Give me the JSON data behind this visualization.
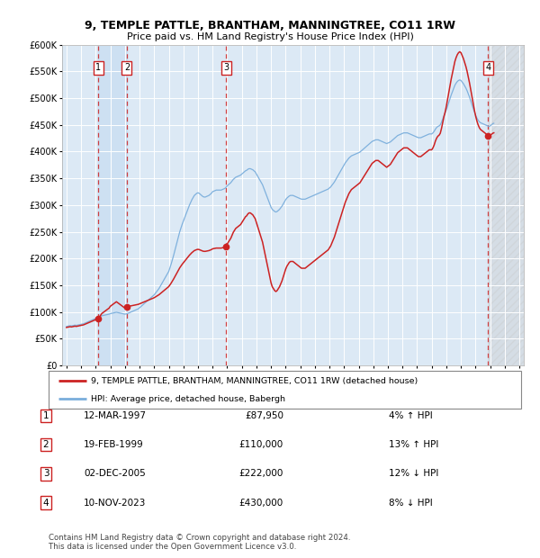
{
  "title": "9, TEMPLE PATTLE, BRANTHAM, MANNINGTREE, CO11 1RW",
  "subtitle": "Price paid vs. HM Land Registry's House Price Index (HPI)",
  "ylim": [
    0,
    600000
  ],
  "yticks": [
    0,
    50000,
    100000,
    150000,
    200000,
    250000,
    300000,
    350000,
    400000,
    450000,
    500000,
    550000,
    600000
  ],
  "xlim_start": 1994.7,
  "xlim_end": 2026.3,
  "background_color": "#dce9f5",
  "fig_bg_color": "#ffffff",
  "hpi_line_color": "#7aaedc",
  "price_line_color": "#cc2222",
  "grid_color": "#ffffff",
  "dashed_line_color": "#cc2222",
  "footer_text": "Contains HM Land Registry data © Crown copyright and database right 2024.\nThis data is licensed under the Open Government Licence v3.0.",
  "legend_entries": [
    "9, TEMPLE PATTLE, BRANTHAM, MANNINGTREE, CO11 1RW (detached house)",
    "HPI: Average price, detached house, Babergh"
  ],
  "transactions": [
    {
      "num": 1,
      "date": "12-MAR-1997",
      "price": 87950,
      "pct": "4%",
      "dir": "↑",
      "year": 1997.19
    },
    {
      "num": 2,
      "date": "19-FEB-1999",
      "price": 110000,
      "pct": "13%",
      "dir": "↑",
      "year": 1999.13
    },
    {
      "num": 3,
      "date": "02-DEC-2005",
      "price": 222000,
      "pct": "12%",
      "dir": "↓",
      "year": 2005.92
    },
    {
      "num": 4,
      "date": "10-NOV-2023",
      "price": 430000,
      "pct": "8%",
      "dir": "↓",
      "year": 2023.86
    }
  ],
  "hpi_years": [
    1995.0,
    1995.083,
    1995.167,
    1995.25,
    1995.333,
    1995.417,
    1995.5,
    1995.583,
    1995.667,
    1995.75,
    1995.833,
    1995.917,
    1996.0,
    1996.083,
    1996.167,
    1996.25,
    1996.333,
    1996.417,
    1996.5,
    1996.583,
    1996.667,
    1996.75,
    1996.833,
    1996.917,
    1997.0,
    1997.083,
    1997.167,
    1997.25,
    1997.333,
    1997.417,
    1997.5,
    1997.583,
    1997.667,
    1997.75,
    1997.833,
    1997.917,
    1998.0,
    1998.083,
    1998.167,
    1998.25,
    1998.333,
    1998.417,
    1998.5,
    1998.583,
    1998.667,
    1998.75,
    1998.833,
    1998.917,
    1999.0,
    1999.083,
    1999.167,
    1999.25,
    1999.333,
    1999.417,
    1999.5,
    1999.583,
    1999.667,
    1999.75,
    1999.833,
    1999.917,
    2000.0,
    2000.083,
    2000.167,
    2000.25,
    2000.333,
    2000.417,
    2000.5,
    2000.583,
    2000.667,
    2000.75,
    2000.833,
    2000.917,
    2001.0,
    2001.083,
    2001.167,
    2001.25,
    2001.333,
    2001.417,
    2001.5,
    2001.583,
    2001.667,
    2001.75,
    2001.833,
    2001.917,
    2002.0,
    2002.083,
    2002.167,
    2002.25,
    2002.333,
    2002.417,
    2002.5,
    2002.583,
    2002.667,
    2002.75,
    2002.833,
    2002.917,
    2003.0,
    2003.083,
    2003.167,
    2003.25,
    2003.333,
    2003.417,
    2003.5,
    2003.583,
    2003.667,
    2003.75,
    2003.833,
    2003.917,
    2004.0,
    2004.083,
    2004.167,
    2004.25,
    2004.333,
    2004.417,
    2004.5,
    2004.583,
    2004.667,
    2004.75,
    2004.833,
    2004.917,
    2005.0,
    2005.083,
    2005.167,
    2005.25,
    2005.333,
    2005.417,
    2005.5,
    2005.583,
    2005.667,
    2005.75,
    2005.833,
    2005.917,
    2006.0,
    2006.083,
    2006.167,
    2006.25,
    2006.333,
    2006.417,
    2006.5,
    2006.583,
    2006.667,
    2006.75,
    2006.833,
    2006.917,
    2007.0,
    2007.083,
    2007.167,
    2007.25,
    2007.333,
    2007.417,
    2007.5,
    2007.583,
    2007.667,
    2007.75,
    2007.833,
    2007.917,
    2008.0,
    2008.083,
    2008.167,
    2008.25,
    2008.333,
    2008.417,
    2008.5,
    2008.583,
    2008.667,
    2008.75,
    2008.833,
    2008.917,
    2009.0,
    2009.083,
    2009.167,
    2009.25,
    2009.333,
    2009.417,
    2009.5,
    2009.583,
    2009.667,
    2009.75,
    2009.833,
    2009.917,
    2010.0,
    2010.083,
    2010.167,
    2010.25,
    2010.333,
    2010.417,
    2010.5,
    2010.583,
    2010.667,
    2010.75,
    2010.833,
    2010.917,
    2011.0,
    2011.083,
    2011.167,
    2011.25,
    2011.333,
    2011.417,
    2011.5,
    2011.583,
    2011.667,
    2011.75,
    2011.833,
    2011.917,
    2012.0,
    2012.083,
    2012.167,
    2012.25,
    2012.333,
    2012.417,
    2012.5,
    2012.583,
    2012.667,
    2012.75,
    2012.833,
    2012.917,
    2013.0,
    2013.083,
    2013.167,
    2013.25,
    2013.333,
    2013.417,
    2013.5,
    2013.583,
    2013.667,
    2013.75,
    2013.833,
    2013.917,
    2014.0,
    2014.083,
    2014.167,
    2014.25,
    2014.333,
    2014.417,
    2014.5,
    2014.583,
    2014.667,
    2014.75,
    2014.833,
    2014.917,
    2015.0,
    2015.083,
    2015.167,
    2015.25,
    2015.333,
    2015.417,
    2015.5,
    2015.583,
    2015.667,
    2015.75,
    2015.833,
    2015.917,
    2016.0,
    2016.083,
    2016.167,
    2016.25,
    2016.333,
    2016.417,
    2016.5,
    2016.583,
    2016.667,
    2016.75,
    2016.833,
    2016.917,
    2017.0,
    2017.083,
    2017.167,
    2017.25,
    2017.333,
    2017.417,
    2017.5,
    2017.583,
    2017.667,
    2017.75,
    2017.833,
    2017.917,
    2018.0,
    2018.083,
    2018.167,
    2018.25,
    2018.333,
    2018.417,
    2018.5,
    2018.583,
    2018.667,
    2018.75,
    2018.833,
    2018.917,
    2019.0,
    2019.083,
    2019.167,
    2019.25,
    2019.333,
    2019.417,
    2019.5,
    2019.583,
    2019.667,
    2019.75,
    2019.833,
    2019.917,
    2020.0,
    2020.083,
    2020.167,
    2020.25,
    2020.333,
    2020.417,
    2020.5,
    2020.583,
    2020.667,
    2020.75,
    2020.833,
    2020.917,
    2021.0,
    2021.083,
    2021.167,
    2021.25,
    2021.333,
    2021.417,
    2021.5,
    2021.583,
    2021.667,
    2021.75,
    2021.833,
    2021.917,
    2022.0,
    2022.083,
    2022.167,
    2022.25,
    2022.333,
    2022.417,
    2022.5,
    2022.583,
    2022.667,
    2022.75,
    2022.833,
    2022.917,
    2023.0,
    2023.083,
    2023.167,
    2023.25,
    2023.333,
    2023.417,
    2023.5,
    2023.583,
    2023.667,
    2023.75,
    2023.833,
    2023.917,
    2024.0,
    2024.083,
    2024.167,
    2024.25
  ],
  "hpi_vals": [
    73000,
    73500,
    74000,
    74500,
    74000,
    74500,
    75000,
    75500,
    75000,
    75500,
    76000,
    76500,
    77000,
    77500,
    78000,
    79000,
    80000,
    81000,
    82000,
    83000,
    84000,
    85000,
    86000,
    87000,
    88000,
    89000,
    90000,
    91000,
    92000,
    93000,
    93500,
    94000,
    94500,
    95000,
    95500,
    96000,
    97000,
    97500,
    98000,
    98500,
    99000,
    99500,
    99000,
    98500,
    98000,
    97500,
    97000,
    96500,
    96000,
    96500,
    97000,
    98000,
    99000,
    100000,
    101000,
    102000,
    103000,
    104000,
    105000,
    106000,
    108000,
    110000,
    112000,
    114000,
    116000,
    118000,
    120000,
    122000,
    124000,
    126000,
    128000,
    130000,
    132000,
    135000,
    138000,
    141000,
    144000,
    148000,
    152000,
    156000,
    160000,
    164000,
    168000,
    172000,
    176000,
    183000,
    190000,
    198000,
    206000,
    215000,
    224000,
    233000,
    242000,
    250000,
    257000,
    264000,
    270000,
    276000,
    282000,
    288000,
    294000,
    300000,
    305000,
    310000,
    314000,
    318000,
    320000,
    322000,
    323000,
    322000,
    320000,
    318000,
    316000,
    315000,
    315000,
    316000,
    317000,
    318000,
    320000,
    322000,
    325000,
    326000,
    327000,
    328000,
    328000,
    328000,
    328000,
    328000,
    329000,
    330000,
    331000,
    333000,
    336000,
    338000,
    340000,
    342000,
    345000,
    348000,
    350000,
    352000,
    353000,
    354000,
    355000,
    356000,
    358000,
    360000,
    362000,
    364000,
    365000,
    367000,
    368000,
    368000,
    367000,
    366000,
    364000,
    362000,
    358000,
    354000,
    350000,
    346000,
    342000,
    338000,
    332000,
    326000,
    320000,
    314000,
    308000,
    302000,
    296000,
    292000,
    290000,
    288000,
    287000,
    288000,
    290000,
    292000,
    295000,
    298000,
    302000,
    306000,
    310000,
    313000,
    315000,
    317000,
    318000,
    318000,
    318000,
    317000,
    316000,
    315000,
    314000,
    313000,
    312000,
    311000,
    311000,
    311000,
    311000,
    312000,
    313000,
    314000,
    315000,
    316000,
    317000,
    318000,
    319000,
    320000,
    321000,
    322000,
    323000,
    324000,
    325000,
    326000,
    327000,
    328000,
    329000,
    330000,
    332000,
    334000,
    337000,
    340000,
    343000,
    347000,
    351000,
    355000,
    359000,
    363000,
    367000,
    371000,
    375000,
    379000,
    382000,
    385000,
    388000,
    390000,
    392000,
    393000,
    394000,
    395000,
    396000,
    397000,
    398000,
    399000,
    401000,
    403000,
    405000,
    407000,
    409000,
    411000,
    413000,
    415000,
    417000,
    419000,
    420000,
    421000,
    422000,
    422000,
    422000,
    421000,
    420000,
    419000,
    418000,
    417000,
    416000,
    415000,
    416000,
    417000,
    418000,
    420000,
    422000,
    424000,
    426000,
    428000,
    430000,
    431000,
    432000,
    433000,
    434000,
    435000,
    435000,
    435000,
    435000,
    434000,
    433000,
    432000,
    431000,
    430000,
    429000,
    428000,
    427000,
    426000,
    426000,
    426000,
    427000,
    428000,
    429000,
    430000,
    431000,
    432000,
    433000,
    433000,
    433000,
    435000,
    438000,
    442000,
    445000,
    447000,
    448000,
    450000,
    455000,
    461000,
    467000,
    472000,
    478000,
    485000,
    492000,
    499000,
    506000,
    512000,
    518000,
    524000,
    528000,
    531000,
    533000,
    534000,
    533000,
    530000,
    527000,
    523000,
    519000,
    514000,
    508000,
    502000,
    495000,
    488000,
    481000,
    474000,
    468000,
    463000,
    459000,
    456000,
    454000,
    453000,
    452000,
    451000,
    450000,
    449000,
    448000,
    447000,
    448000,
    450000,
    452000,
    453000
  ]
}
